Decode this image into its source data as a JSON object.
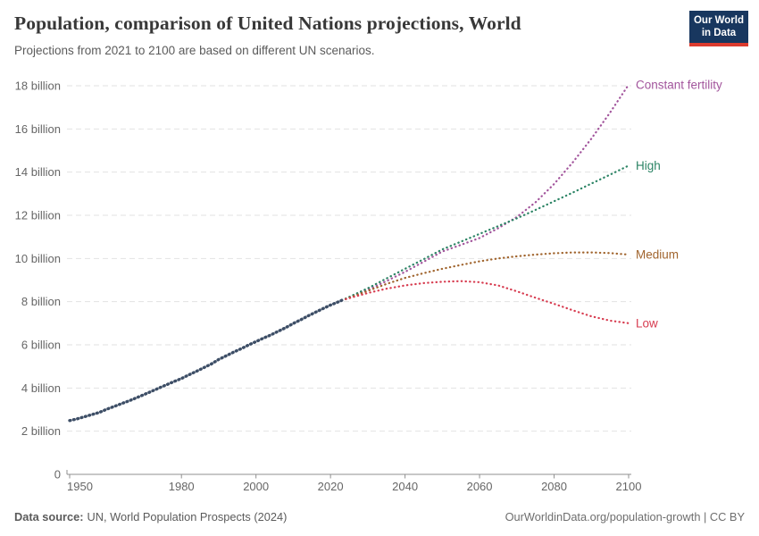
{
  "header": {
    "title": "Population, comparison of United Nations projections, World",
    "subtitle": "Projections from 2021 to 2100 are based on different UN scenarios.",
    "logo": {
      "line1": "Our World",
      "line2": "in Data",
      "bg_color": "#18375f",
      "accent_color": "#dc3b2e"
    }
  },
  "footer": {
    "source_label": "Data source:",
    "source_value": "UN, World Population Prospects (2024)",
    "credit": "OurWorldinData.org/population-growth | CC BY"
  },
  "chart_data": {
    "type": "line",
    "title": "Population, comparison of United Nations projections, World",
    "xlabel": "",
    "ylabel": "",
    "xlim": [
      1950,
      2100
    ],
    "ylim": [
      0,
      18
    ],
    "unit": "billion",
    "grid": "horizontal-dashed",
    "legend_position": "right-end-labels",
    "x_ticks": [
      1950,
      1980,
      2000,
      2020,
      2040,
      2060,
      2080,
      2100
    ],
    "y_ticks": [
      {
        "value": 0,
        "label": "0"
      },
      {
        "value": 2,
        "label": "2 billion"
      },
      {
        "value": 4,
        "label": "4 billion"
      },
      {
        "value": 6,
        "label": "6 billion"
      },
      {
        "value": 8,
        "label": "8 billion"
      },
      {
        "value": 10,
        "label": "10 billion"
      },
      {
        "value": 12,
        "label": "12 billion"
      },
      {
        "value": 14,
        "label": "14 billion"
      },
      {
        "value": 16,
        "label": "16 billion"
      },
      {
        "value": 18,
        "label": "18 billion"
      }
    ],
    "colors": {
      "grid": "#e2e2e2",
      "axis": "#8f8f8f",
      "tick_label": "#666666"
    },
    "series": [
      {
        "name": "Historical",
        "label": null,
        "color": "#3d4e66",
        "style": "dense-dots",
        "points": [
          [
            1950,
            2.49
          ],
          [
            1952,
            2.57
          ],
          [
            1954,
            2.67
          ],
          [
            1956,
            2.77
          ],
          [
            1958,
            2.87
          ],
          [
            1960,
            3.02
          ],
          [
            1962,
            3.15
          ],
          [
            1964,
            3.28
          ],
          [
            1966,
            3.41
          ],
          [
            1968,
            3.55
          ],
          [
            1970,
            3.7
          ],
          [
            1972,
            3.85
          ],
          [
            1974,
            4.0
          ],
          [
            1976,
            4.15
          ],
          [
            1978,
            4.3
          ],
          [
            1980,
            4.44
          ],
          [
            1982,
            4.61
          ],
          [
            1984,
            4.77
          ],
          [
            1986,
            4.94
          ],
          [
            1988,
            5.11
          ],
          [
            1990,
            5.32
          ],
          [
            1992,
            5.49
          ],
          [
            1994,
            5.66
          ],
          [
            1996,
            5.82
          ],
          [
            1998,
            5.99
          ],
          [
            2000,
            6.15
          ],
          [
            2002,
            6.31
          ],
          [
            2004,
            6.46
          ],
          [
            2006,
            6.63
          ],
          [
            2008,
            6.8
          ],
          [
            2010,
            6.99
          ],
          [
            2012,
            7.16
          ],
          [
            2014,
            7.34
          ],
          [
            2016,
            7.51
          ],
          [
            2018,
            7.68
          ],
          [
            2020,
            7.84
          ],
          [
            2021,
            7.91
          ],
          [
            2022,
            7.98
          ],
          [
            2023,
            8.06
          ]
        ]
      },
      {
        "name": "Constant fertility",
        "label": "Constant fertility",
        "color": "#a2559c",
        "style": "sparse-dots",
        "points": [
          [
            2023,
            8.06
          ],
          [
            2025,
            8.19
          ],
          [
            2030,
            8.55
          ],
          [
            2035,
            8.95
          ],
          [
            2040,
            9.38
          ],
          [
            2045,
            9.85
          ],
          [
            2050,
            10.32
          ],
          [
            2055,
            10.63
          ],
          [
            2060,
            10.95
          ],
          [
            2065,
            11.4
          ],
          [
            2070,
            11.92
          ],
          [
            2075,
            12.6
          ],
          [
            2080,
            13.45
          ],
          [
            2085,
            14.45
          ],
          [
            2090,
            15.55
          ],
          [
            2095,
            16.75
          ],
          [
            2100,
            18.05
          ]
        ]
      },
      {
        "name": "High",
        "label": "High",
        "color": "#2c8465",
        "style": "sparse-dots",
        "points": [
          [
            2023,
            8.06
          ],
          [
            2025,
            8.22
          ],
          [
            2030,
            8.62
          ],
          [
            2035,
            9.07
          ],
          [
            2040,
            9.52
          ],
          [
            2045,
            9.97
          ],
          [
            2050,
            10.42
          ],
          [
            2055,
            10.78
          ],
          [
            2060,
            11.14
          ],
          [
            2065,
            11.5
          ],
          [
            2070,
            11.86
          ],
          [
            2075,
            12.25
          ],
          [
            2080,
            12.65
          ],
          [
            2085,
            13.05
          ],
          [
            2090,
            13.47
          ],
          [
            2095,
            13.88
          ],
          [
            2100,
            14.3
          ]
        ]
      },
      {
        "name": "Medium",
        "label": "Medium",
        "color": "#a0642d",
        "style": "sparse-dots",
        "points": [
          [
            2023,
            8.06
          ],
          [
            2025,
            8.18
          ],
          [
            2030,
            8.5
          ],
          [
            2035,
            8.82
          ],
          [
            2040,
            9.1
          ],
          [
            2045,
            9.32
          ],
          [
            2050,
            9.52
          ],
          [
            2055,
            9.7
          ],
          [
            2060,
            9.87
          ],
          [
            2065,
            10.0
          ],
          [
            2070,
            10.1
          ],
          [
            2075,
            10.18
          ],
          [
            2080,
            10.24
          ],
          [
            2085,
            10.28
          ],
          [
            2090,
            10.28
          ],
          [
            2095,
            10.25
          ],
          [
            2100,
            10.18
          ]
        ]
      },
      {
        "name": "Low",
        "label": "Low",
        "color": "#d73c50",
        "style": "sparse-dots",
        "points": [
          [
            2023,
            8.06
          ],
          [
            2025,
            8.16
          ],
          [
            2030,
            8.4
          ],
          [
            2035,
            8.6
          ],
          [
            2040,
            8.75
          ],
          [
            2045,
            8.86
          ],
          [
            2050,
            8.92
          ],
          [
            2055,
            8.95
          ],
          [
            2060,
            8.9
          ],
          [
            2065,
            8.75
          ],
          [
            2070,
            8.48
          ],
          [
            2075,
            8.18
          ],
          [
            2080,
            7.9
          ],
          [
            2085,
            7.6
          ],
          [
            2090,
            7.32
          ],
          [
            2095,
            7.12
          ],
          [
            2100,
            7.0
          ]
        ]
      }
    ]
  }
}
